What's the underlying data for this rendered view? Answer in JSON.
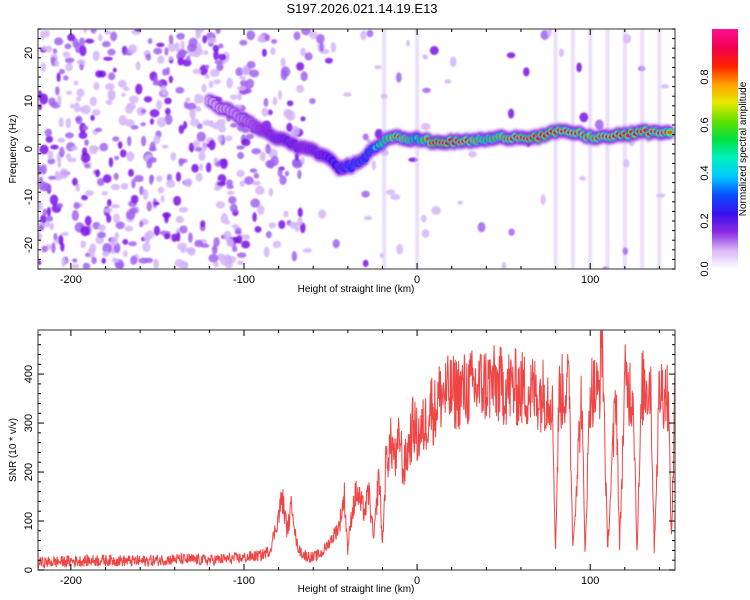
{
  "title": "S197.2026.021.14.19.E13",
  "chart_data": [
    {
      "type": "heatmap",
      "name": "spectrogram",
      "xlabel": "Height of straight line (km)",
      "ylabel": "Frequency (Hz)",
      "xlim": [
        -219,
        149
      ],
      "ylim": [
        -25,
        25
      ],
      "xticks": [
        -200,
        -100,
        0,
        100
      ],
      "xtick_labels": [
        "-200",
        "-100",
        "0",
        "100"
      ],
      "yticks": [
        -20,
        -10,
        0,
        10,
        20
      ],
      "ytick_labels": [
        "-20",
        "-10",
        "0",
        "10",
        "20"
      ],
      "colorbar": {
        "label": "Normalized spectral amplitude",
        "range": [
          0.0,
          1.0
        ],
        "ticks": [
          0.0,
          0.2,
          0.4,
          0.6,
          0.8
        ],
        "tick_labels": [
          "0.0",
          "0.2",
          "0.4",
          "0.6",
          "0.8"
        ],
        "colormap": [
          "#ffffff",
          "#d8b8f8",
          "#8a2be2",
          "#3a10f0",
          "#0a4cff",
          "#00c8ff",
          "#00f0c0",
          "#00e040",
          "#60e000",
          "#e8e800",
          "#ffa000",
          "#ff2000",
          "#f00050",
          "#ff1090"
        ]
      },
      "ridge": {
        "description": "Dominant frequency ridge vs height",
        "x": [
          -120,
          -100,
          -85,
          -75,
          -65,
          -55,
          -45,
          -38,
          -30,
          -22,
          -18,
          -12,
          -5,
          0,
          10,
          25,
          40,
          55,
          70,
          80,
          90,
          100,
          110,
          120,
          130,
          140,
          148
        ],
        "y": [
          10,
          6,
          3,
          1.5,
          0,
          -1,
          -4,
          -3.5,
          -1.5,
          1,
          2,
          3,
          2,
          2,
          1.5,
          1.5,
          2,
          2.5,
          2.5,
          3.5,
          3.5,
          2.5,
          2.5,
          3,
          3.5,
          3.5,
          3.5
        ],
        "amplitude": [
          0.15,
          0.2,
          0.3,
          0.35,
          0.3,
          0.35,
          0.45,
          0.5,
          0.5,
          0.6,
          0.7,
          0.85,
          0.75,
          0.6,
          0.95,
          0.9,
          0.7,
          0.85,
          0.95,
          0.9,
          0.85,
          0.8,
          0.85,
          0.9,
          0.9,
          0.85,
          0.8
        ]
      },
      "noise_region_xlim": [
        -219,
        -100
      ]
    },
    {
      "type": "line",
      "name": "snr",
      "xlabel": "Height of straight line (km)",
      "ylabel": "SNR (10 * v/v)",
      "xlim": [
        -219,
        149
      ],
      "ylim": [
        0,
        490
      ],
      "xticks": [
        -200,
        -100,
        0,
        100
      ],
      "xtick_labels": [
        "-200",
        "-100",
        "0",
        "100"
      ],
      "yticks": [
        0,
        100,
        200,
        300,
        400
      ],
      "ytick_labels": [
        "0",
        "100",
        "200",
        "300",
        "400"
      ],
      "color": "#f03030",
      "series": [
        {
          "name": "SNR",
          "x": [
            -219,
            -200,
            -180,
            -160,
            -140,
            -120,
            -100,
            -90,
            -85,
            -80,
            -78,
            -75,
            -72,
            -70,
            -68,
            -65,
            -60,
            -55,
            -50,
            -45,
            -42,
            -40,
            -38,
            -35,
            -32,
            -30,
            -28,
            -25,
            -22,
            -20,
            -18,
            -15,
            -12,
            -10,
            -8,
            -5,
            -2,
            0,
            2,
            5,
            8,
            10,
            12,
            15,
            20,
            30,
            40,
            50,
            60,
            70,
            78,
            80,
            82,
            88,
            90,
            95,
            97,
            100,
            105,
            107,
            110,
            115,
            117,
            120,
            125,
            127,
            130,
            135,
            137,
            140,
            145,
            147,
            149
          ],
          "y": [
            15,
            18,
            20,
            18,
            22,
            20,
            25,
            30,
            40,
            110,
            150,
            80,
            140,
            60,
            40,
            30,
            25,
            35,
            60,
            90,
            150,
            40,
            110,
            160,
            130,
            120,
            160,
            60,
            200,
            50,
            220,
            260,
            220,
            280,
            200,
            250,
            300,
            270,
            280,
            300,
            340,
            320,
            350,
            360,
            360,
            370,
            380,
            375,
            370,
            360,
            360,
            40,
            360,
            370,
            45,
            360,
            35,
            370,
            360,
            480,
            40,
            370,
            45,
            380,
            360,
            40,
            370,
            380,
            45,
            370,
            360,
            60,
            380
          ]
        }
      ]
    }
  ]
}
